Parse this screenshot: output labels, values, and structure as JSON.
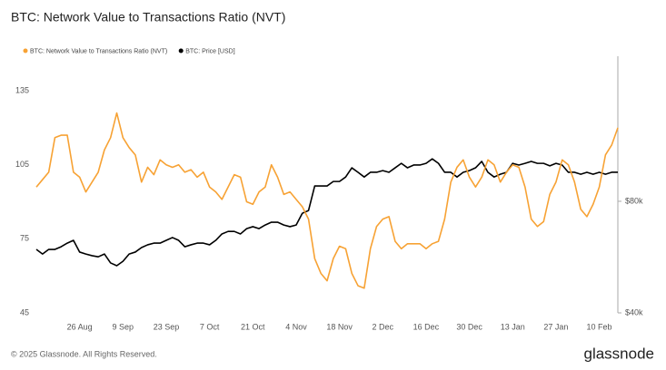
{
  "chart_data": {
    "type": "line",
    "title": "BTC: Network Value to Transactions Ratio (NVT)",
    "categories": [
      null,
      null,
      null,
      null,
      null,
      null,
      null,
      "26 Aug",
      null,
      null,
      null,
      null,
      null,
      null,
      "9 Sep",
      null,
      null,
      null,
      null,
      null,
      null,
      "23 Sep",
      null,
      null,
      null,
      null,
      null,
      null,
      "7 Oct",
      null,
      null,
      null,
      null,
      null,
      null,
      "21 Oct",
      null,
      null,
      null,
      null,
      null,
      null,
      "4 Nov",
      null,
      null,
      null,
      null,
      null,
      null,
      "18 Nov",
      null,
      null,
      null,
      null,
      null,
      null,
      "2 Dec",
      null,
      null,
      null,
      null,
      null,
      null,
      "16 Dec",
      null,
      null,
      null,
      null,
      null,
      null,
      "30 Dec",
      null,
      null,
      null,
      null,
      null,
      null,
      "13 Jan",
      null,
      null,
      null,
      null,
      null,
      null,
      "27 Jan",
      null,
      null,
      null,
      null,
      null,
      null,
      "10 Feb",
      null,
      null,
      null
    ],
    "series": [
      {
        "name": "BTC: Network Value to Transactions Ratio (NVT)",
        "color": "#f7a234",
        "axis": "y",
        "values": [
          96,
          99,
          102,
          116,
          117,
          117,
          102,
          100,
          94,
          98,
          102,
          111,
          116,
          126,
          116,
          112,
          109,
          98,
          104,
          101,
          107,
          105,
          104,
          105,
          102,
          103,
          100,
          102,
          96,
          94,
          91,
          96,
          101,
          100,
          90,
          89,
          94,
          96,
          105,
          100,
          93,
          94,
          91,
          88,
          83,
          67,
          61,
          58,
          67,
          72,
          71,
          61,
          56,
          55,
          71,
          80,
          83,
          84,
          74,
          71,
          73,
          73,
          73,
          71,
          73,
          74,
          83,
          98,
          104,
          107,
          100,
          96,
          100,
          107,
          105,
          98,
          102,
          105,
          104,
          96,
          83,
          80,
          82,
          93,
          98,
          107,
          105,
          98,
          87,
          84,
          89,
          96,
          109,
          113,
          120
        ]
      },
      {
        "name": "BTC: Price [USD]",
        "color": "#000000",
        "axis": "y2",
        "values": [
          62750,
          61100,
          62750,
          62750,
          63700,
          65000,
          66000,
          61800,
          61100,
          60500,
          60100,
          61100,
          57900,
          56900,
          58500,
          61100,
          61800,
          63400,
          64400,
          65000,
          65000,
          66000,
          67000,
          66000,
          63700,
          64400,
          65000,
          65000,
          64400,
          66000,
          68300,
          69200,
          69200,
          68300,
          70200,
          70900,
          70200,
          71500,
          72500,
          72500,
          71500,
          70900,
          71500,
          75700,
          76700,
          85500,
          85500,
          85500,
          87100,
          87100,
          88700,
          92000,
          90400,
          88700,
          90400,
          90400,
          91000,
          90400,
          92000,
          93600,
          92000,
          93000,
          93000,
          93600,
          95200,
          93600,
          90400,
          90400,
          88700,
          90400,
          91000,
          92000,
          94300,
          90400,
          88700,
          89700,
          90400,
          93600,
          93000,
          93600,
          94300,
          93600,
          93600,
          92700,
          93600,
          93000,
          90400,
          90400,
          89700,
          90400,
          89700,
          90400,
          89700,
          90400,
          90400
        ]
      }
    ],
    "ylim": [
      45,
      149
    ],
    "yticks": [
      45,
      75,
      105,
      135
    ],
    "y2lim": [
      40000,
      132000
    ],
    "y2ticks": [
      {
        "value": 40000,
        "label": "$40k"
      },
      {
        "value": 80000,
        "label": "$80k"
      }
    ],
    "grid": false,
    "legend": "top-left"
  },
  "footer": {
    "copyright": "© 2025 Glassnode. All Rights Reserved.",
    "logo": "glassnode"
  }
}
